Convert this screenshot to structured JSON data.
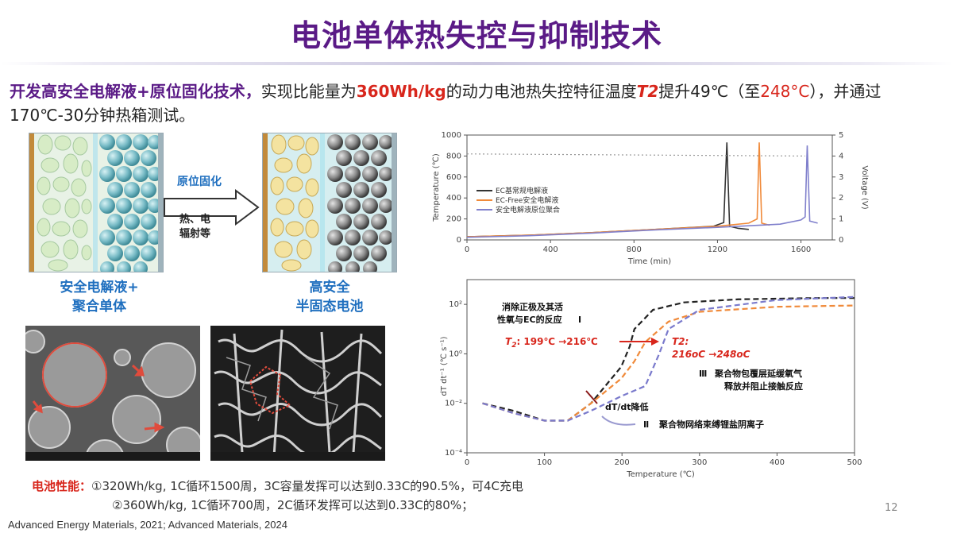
{
  "title": "电池单体热失控与抑制技术",
  "intro": {
    "lead": "开发高安全电解液+原位固化技术，",
    "t1": "实现比能量为",
    "energy": "360Wh/kg",
    "t2": "的动力电池热失控特征温度",
    "t2_symbol": "T2",
    "t3": "提升49℃（至",
    "temp": "248°C",
    "t4": "），并通过170℃-30分钟热箱测试。"
  },
  "schematic": {
    "left_caption_1": "安全电解液+",
    "left_caption_2": "聚合单体",
    "arrow_label": "原位固化",
    "arrow_sub_1": "热、电",
    "arrow_sub_2": "辐射等",
    "right_caption_1": "高安全",
    "right_caption_2": "半固态电池"
  },
  "chart_data": [
    {
      "type": "line",
      "xlabel": "Time (min)",
      "ylabel": "Temperature (℃)",
      "y2label": "Voltage (V)",
      "xlim": [
        0,
        1750
      ],
      "ylim": [
        0,
        1000
      ],
      "y2lim": [
        0,
        5
      ],
      "xticks": [
        "0",
        "400",
        "800",
        "1200",
        "1600"
      ],
      "yticks": [
        "0",
        "200",
        "400",
        "600",
        "800",
        "1000"
      ],
      "y2ticks": [
        "0",
        "1",
        "2",
        "3",
        "4",
        "5"
      ],
      "series": [
        {
          "name": "EC基常规电解液",
          "color": "#333333",
          "x": [
            0,
            300,
            600,
            900,
            1180,
            1230,
            1245,
            1258,
            1300,
            1350
          ],
          "y": [
            30,
            45,
            70,
            100,
            130,
            165,
            930,
            130,
            110,
            100
          ]
        },
        {
          "name": "EC-Free安全电解液",
          "color": "#f08a3a",
          "x": [
            0,
            300,
            600,
            900,
            1200,
            1350,
            1390,
            1400,
            1412,
            1450
          ],
          "y": [
            30,
            45,
            70,
            100,
            130,
            160,
            200,
            930,
            160,
            140
          ]
        },
        {
          "name": "安全电解液原位聚合",
          "color": "#8080cc",
          "x": [
            0,
            300,
            600,
            900,
            1200,
            1500,
            1600,
            1620,
            1630,
            1642,
            1680
          ],
          "y": [
            25,
            40,
            65,
            95,
            120,
            150,
            190,
            220,
            900,
            180,
            160
          ]
        },
        {
          "name": "",
          "color": "#999999",
          "dashed": true,
          "x": [
            0,
            1620
          ],
          "y": [
            820,
            800
          ]
        }
      ]
    },
    {
      "type": "line",
      "xlabel": "Temperature (℃)",
      "ylabel": "dT dt⁻¹ (℃ s⁻¹)",
      "xlim": [
        0,
        500
      ],
      "ylog": true,
      "ylim": [
        0.0001,
        1000
      ],
      "xticks": [
        "0",
        "100",
        "200",
        "300",
        "400",
        "500"
      ],
      "yticks": [
        "10⁻⁴",
        "10⁻²",
        "10⁰",
        "10²"
      ],
      "series": [
        {
          "name": "",
          "color": "#222222",
          "x": [
            20,
            60,
            100,
            130,
            160,
            199,
            210,
            216,
            240,
            280,
            350,
            450,
            500
          ],
          "y": [
            0.01,
            0.005,
            0.002,
            0.002,
            0.01,
            0.3,
            2,
            10,
            60,
            120,
            160,
            180,
            180
          ]
        },
        {
          "name": "",
          "color": "#f08a3a",
          "x": [
            20,
            60,
            100,
            130,
            160,
            199,
            216,
            230,
            260,
            300,
            400,
            500
          ],
          "y": [
            0.01,
            0.004,
            0.002,
            0.002,
            0.01,
            0.1,
            0.5,
            3,
            20,
            50,
            80,
            90
          ]
        },
        {
          "name": "",
          "color": "#7a7acc",
          "x": [
            20,
            60,
            100,
            130,
            160,
            200,
            230,
            248,
            260,
            300,
            400,
            500
          ],
          "y": [
            0.01,
            0.004,
            0.002,
            0.002,
            0.005,
            0.02,
            0.05,
            1,
            10,
            60,
            150,
            200
          ]
        }
      ],
      "annotations": {
        "a1_line1": "消除正极及其活",
        "a1_line2": "性氧与EC的反应",
        "a1_mark": "Ⅰ",
        "t2_left_symbol": "T",
        "t2_left_sub": "2",
        "t2_left_text": ": 199℃ →216℃",
        "t2_right_1": "T2:",
        "t2_right_2": "216oC →248oC",
        "a3_mark": "Ⅲ",
        "a3_line1": "聚合物包覆层延缓氧气",
        "a3_line2": "释放并阻止接触反应",
        "dtdt": "dT/dt降低",
        "a2_mark": "Ⅱ",
        "a2_text": "聚合物网络束缚锂盐阴离子"
      }
    }
  ],
  "performance": {
    "label": "电池性能：",
    "line1": "①320Wh/kg, 1C循环1500周，3C容量发挥可以达到0.33C的90.5%，可4C充电",
    "line2": "②360Wh/kg, 1C循环700周，2C循环发挥可以达到0.33C的80%；"
  },
  "references": "Advanced Energy Materials, 2021; Advanced Materials, 2024",
  "page_number": "12"
}
